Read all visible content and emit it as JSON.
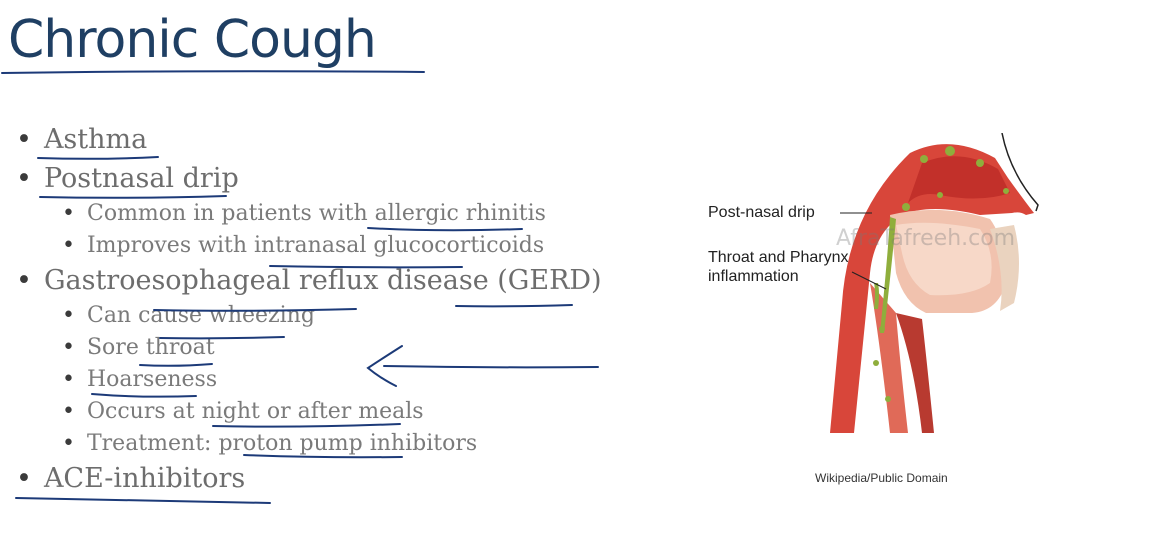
{
  "slide": {
    "title": "Chronic Cough",
    "bullets": [
      {
        "text": "Asthma"
      },
      {
        "text": "Postnasal drip",
        "sub": [
          "Common in patients with allergic rhinitis",
          "Improves with intranasal glucocorticoids"
        ]
      },
      {
        "text": "Gastroesophageal reflux disease (GERD)",
        "sub": [
          "Can cause wheezing",
          "Sore throat",
          "Hoarseness",
          "Occurs at night or after meals",
          "Treatment: proton pump inhibitors"
        ]
      },
      {
        "text": "ACE-inhibitors"
      }
    ]
  },
  "figure": {
    "label_postnasal": "Post-nasal drip",
    "label_throat_line1": "Throat and Pharynx",
    "label_throat_line2": "inflammation",
    "watermark": "AfraTafreeh.com",
    "credit": "Wikipedia/Public Domain"
  },
  "colors": {
    "title": "#1f3f63",
    "ink": "#1c3a78",
    "tissue_red": "#d8463a",
    "mucus_green": "#8fae3c"
  }
}
